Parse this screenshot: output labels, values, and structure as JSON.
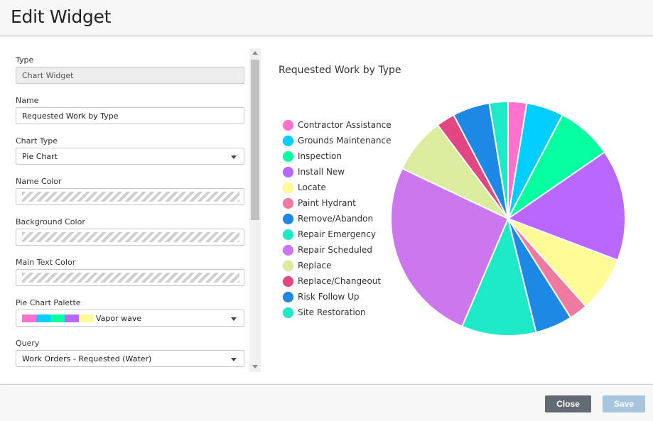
{
  "dialog": {
    "title": "Edit Widget"
  },
  "form": {
    "type": {
      "label": "Type",
      "value": "Chart Widget"
    },
    "name": {
      "label": "Name",
      "value": "Requested Work by Type"
    },
    "chart_type": {
      "label": "Chart Type",
      "value": "Pie Chart"
    },
    "name_color": {
      "label": "Name Color"
    },
    "background_color": {
      "label": "Background Color"
    },
    "main_text_color": {
      "label": "Main Text Color"
    },
    "palette": {
      "label": "Pie Chart Palette",
      "value": "Vapor wave",
      "colors": [
        "#ff71ce",
        "#01cdfe",
        "#05ffa1",
        "#b967ff",
        "#fffb96"
      ]
    },
    "query": {
      "label": "Query",
      "value": "Work Orders - Requested (Water)"
    }
  },
  "preview": {
    "title": "Requested Work by Type"
  },
  "chart_data": {
    "type": "pie",
    "title": "Requested Work by Type",
    "legend_position": "left",
    "slices": [
      {
        "label": "Contractor Assistance",
        "value": 2.5,
        "color": "#ff71ce"
      },
      {
        "label": "Grounds Maintenance",
        "value": 5,
        "color": "#01cdfe"
      },
      {
        "label": "Inspection",
        "value": 7.5,
        "color": "#05ffa1"
      },
      {
        "label": "Install New",
        "value": 15,
        "color": "#b967ff"
      },
      {
        "label": "Locate",
        "value": 7.5,
        "color": "#fffb96"
      },
      {
        "label": "Paint Hydrant",
        "value": 2.5,
        "color": "#ee7aa0"
      },
      {
        "label": "Remove/Abandon",
        "value": 5,
        "color": "#1e88e5"
      },
      {
        "label": "Repair Emergency",
        "value": 10,
        "color": "#1de9c8"
      },
      {
        "label": "Repair Scheduled",
        "value": 25,
        "color": "#cc77ee"
      },
      {
        "label": "Replace",
        "value": 7.5,
        "color": "#dcec9e"
      },
      {
        "label": "Replace/Changeout",
        "value": 2.5,
        "color": "#e24683"
      },
      {
        "label": "Risk Follow Up",
        "value": 5,
        "color": "#1e88e5"
      },
      {
        "label": "Site Restoration",
        "value": 2.5,
        "color": "#1de9c8"
      }
    ]
  },
  "footer": {
    "close_label": "Close",
    "save_label": "Save"
  }
}
